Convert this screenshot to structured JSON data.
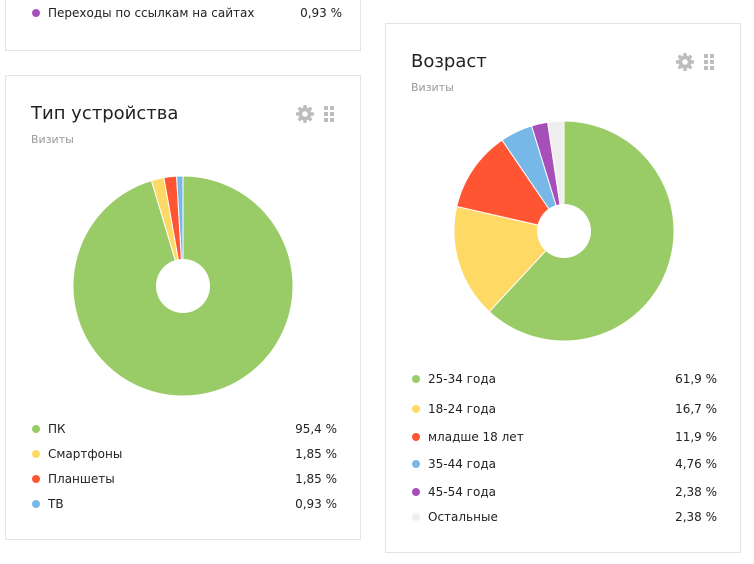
{
  "top_card": {
    "legend": [
      {
        "label": "Переходы по ссылкам на сайтах",
        "value": "0,93 %",
        "color": "#a74fb9"
      }
    ]
  },
  "device_card": {
    "title": "Тип устройства",
    "subtitle": "Визиты",
    "icons": [
      "gear-icon",
      "drag-handle-icon"
    ],
    "legend": [
      {
        "label": "ПК",
        "value": "95,4 %",
        "color": "#99cc66"
      },
      {
        "label": "Смартфоны",
        "value": "1,85 %",
        "color": "#ffd966"
      },
      {
        "label": "Планшеты",
        "value": "1,85 %",
        "color": "#ff5533"
      },
      {
        "label": "ТВ",
        "value": "0,93 %",
        "color": "#77b8e8"
      }
    ]
  },
  "age_card": {
    "title": "Возраст",
    "subtitle": "Визиты",
    "icons": [
      "gear-icon",
      "drag-handle-icon"
    ],
    "legend": [
      {
        "label": "25-34 года",
        "value": "61,9 %",
        "color": "#99cc66"
      },
      {
        "label": "18-24 года",
        "value": "16,7 %",
        "color": "#ffd966"
      },
      {
        "label": "младше 18 лет",
        "value": "11,9 %",
        "color": "#ff5533"
      },
      {
        "label": "35-44 года",
        "value": "4,76 %",
        "color": "#77b8e8"
      },
      {
        "label": "45-54 года",
        "value": "2,38 %",
        "color": "#a74fb9"
      },
      {
        "label": "Остальные",
        "value": "2,38 %",
        "color": "#eeeeee"
      }
    ]
  },
  "chart_data": [
    {
      "type": "pie",
      "title": "Тип устройства",
      "categories": [
        "ПК",
        "Смартфоны",
        "Планшеты",
        "ТВ"
      ],
      "values": [
        95.4,
        1.85,
        1.85,
        0.93
      ],
      "colors": [
        "#99cc66",
        "#ffd966",
        "#ff5533",
        "#77b8e8"
      ]
    },
    {
      "type": "pie",
      "title": "Возраст",
      "categories": [
        "25-34 года",
        "18-24 года",
        "младше 18 лет",
        "35-44 года",
        "45-54 года",
        "Остальные"
      ],
      "values": [
        61.9,
        16.7,
        11.9,
        4.76,
        2.38,
        2.38
      ],
      "colors": [
        "#99cc66",
        "#ffd966",
        "#ff5533",
        "#77b8e8",
        "#a74fb9",
        "#eeeeee"
      ]
    }
  ]
}
